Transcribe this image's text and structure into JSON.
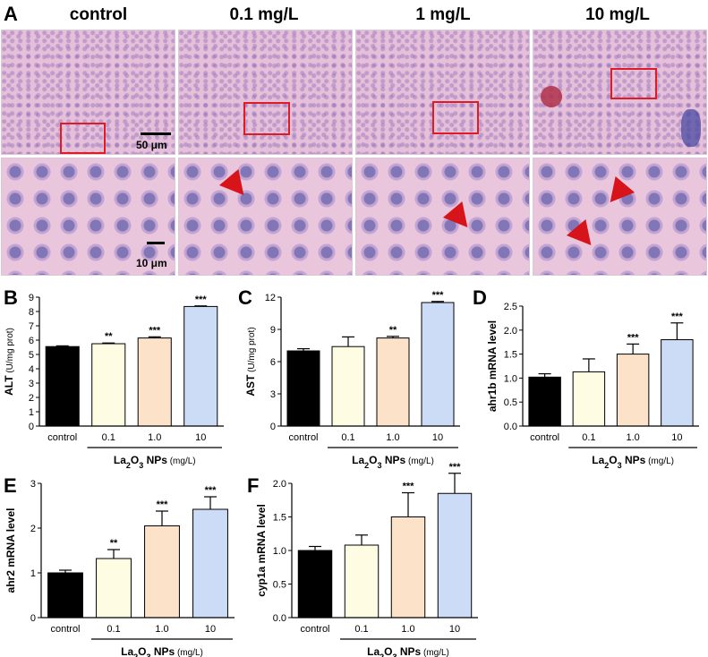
{
  "panel_a": {
    "letter": "A",
    "columns": [
      {
        "label": "control",
        "scale_label": "50 μm",
        "zoom_scale_label": "10 μm"
      },
      {
        "label": "0.1 mg/L"
      },
      {
        "label": "1 mg/L"
      },
      {
        "label": "10 mg/L"
      }
    ]
  },
  "chart_data": [
    {
      "panel": "B",
      "type": "bar",
      "categories": [
        "control",
        "0.1",
        "1.0",
        "10"
      ],
      "values": [
        5.55,
        5.75,
        6.15,
        8.35
      ],
      "errors": [
        0.05,
        0.05,
        0.08,
        0.04
      ],
      "significance": [
        "",
        "**",
        "***",
        "***"
      ],
      "ylabel": "ALT",
      "ylabel_unit": "(U/mg prot)",
      "ylim": [
        0,
        9
      ],
      "yticks": [
        0,
        1,
        2,
        3,
        4,
        5,
        6,
        7,
        8,
        9
      ],
      "xlabel_main": "La",
      "xlabel_sub": "2",
      "xlabel_main2": "O",
      "xlabel_sub2": "3",
      "xlabel_tail": " NPs",
      "xlabel_unit": "(mg/L)",
      "colors": [
        "#000000",
        "#fefde3",
        "#fbe2c8",
        "#cddcf6"
      ]
    },
    {
      "panel": "C",
      "type": "bar",
      "categories": [
        "control",
        "0.1",
        "1.0",
        "10"
      ],
      "values": [
        7.0,
        7.4,
        8.2,
        11.5
      ],
      "errors": [
        0.2,
        0.9,
        0.15,
        0.1
      ],
      "significance": [
        "",
        "",
        "**",
        "***"
      ],
      "ylabel": "AST",
      "ylabel_unit": "(U/mg prot)",
      "ylim": [
        0,
        12
      ],
      "yticks": [
        0,
        3,
        6,
        9,
        12
      ],
      "xlabel_main": "La",
      "xlabel_sub": "2",
      "xlabel_main2": "O",
      "xlabel_sub2": "3",
      "xlabel_tail": " NPs",
      "xlabel_unit": "(mg/L)",
      "colors": [
        "#000000",
        "#fefde3",
        "#fbe2c8",
        "#cddcf6"
      ]
    },
    {
      "panel": "D",
      "type": "bar",
      "categories": [
        "control",
        "0.1",
        "1.0",
        "10"
      ],
      "values": [
        1.02,
        1.13,
        1.5,
        1.8
      ],
      "errors": [
        0.07,
        0.27,
        0.21,
        0.35
      ],
      "significance": [
        "",
        "",
        "***",
        "***"
      ],
      "ylabel": "ahr1b  mRNA level",
      "ylabel_unit": "",
      "ylim": [
        0,
        2.5
      ],
      "yticks": [
        0.0,
        0.5,
        1.0,
        1.5,
        2.0,
        2.5
      ],
      "xlabel_main": "La",
      "xlabel_sub": "2",
      "xlabel_main2": "O",
      "xlabel_sub2": "3",
      "xlabel_tail": " NPs",
      "xlabel_unit": "(mg/L)",
      "colors": [
        "#000000",
        "#fefde3",
        "#fbe2c8",
        "#cddcf6"
      ]
    },
    {
      "panel": "E",
      "type": "bar",
      "categories": [
        "control",
        "0.1",
        "1.0",
        "10"
      ],
      "values": [
        1.0,
        1.32,
        2.05,
        2.42
      ],
      "errors": [
        0.06,
        0.2,
        0.33,
        0.28
      ],
      "significance": [
        "",
        "**",
        "***",
        "***"
      ],
      "ylabel": "ahr2  mRNA level",
      "ylabel_unit": "",
      "ylim": [
        0,
        3
      ],
      "yticks": [
        0,
        1,
        2,
        3
      ],
      "xlabel_main": "La",
      "xlabel_sub": "2",
      "xlabel_main2": "O",
      "xlabel_sub2": "3",
      "xlabel_tail": " NPs",
      "xlabel_unit": "(mg/L)",
      "colors": [
        "#000000",
        "#fefde3",
        "#fbe2c8",
        "#cddcf6"
      ]
    },
    {
      "panel": "F",
      "type": "bar",
      "categories": [
        "control",
        "0.1",
        "1.0",
        "10"
      ],
      "values": [
        1.0,
        1.08,
        1.5,
        1.85
      ],
      "errors": [
        0.06,
        0.15,
        0.36,
        0.3
      ],
      "significance": [
        "",
        "",
        "***",
        "***"
      ],
      "ylabel": "cyp1a  mRNA level",
      "ylabel_unit": "",
      "ylim": [
        0,
        2.0
      ],
      "yticks": [
        0.0,
        0.5,
        1.0,
        1.5,
        2.0
      ],
      "xlabel_main": "La",
      "xlabel_sub": "2",
      "xlabel_main2": "O",
      "xlabel_sub2": "3",
      "xlabel_tail": " NPs",
      "xlabel_unit": "(mg/L)",
      "colors": [
        "#000000",
        "#fefde3",
        "#fbe2c8",
        "#cddcf6"
      ]
    }
  ]
}
